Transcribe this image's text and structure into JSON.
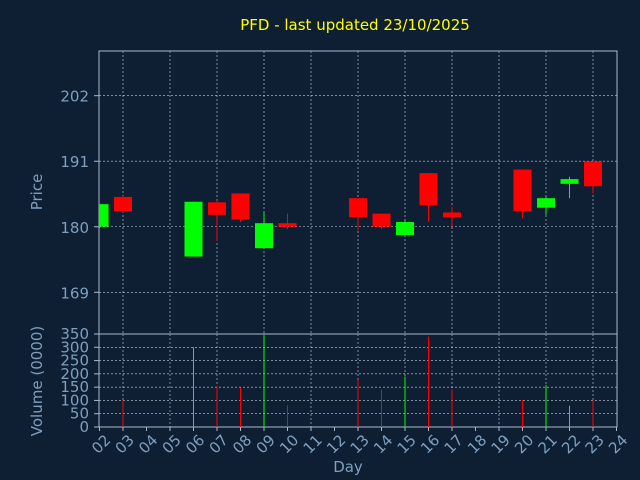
{
  "colors": {
    "background": "#0f1f33",
    "axis": "#a8b8c8",
    "grid": "#c8d0d8",
    "title": "#ffff00",
    "label": "#7f9fbf",
    "up": "#00ff00",
    "down": "#ff0000"
  },
  "chart_data": {
    "type": "candlestick",
    "title": "PFD - last updated 23/10/2025",
    "price_panel": {
      "ylabel": "Price",
      "ylim": [
        162.0,
        209.5
      ],
      "yticks": [
        169,
        180,
        191,
        202
      ],
      "grid": true
    },
    "volume_panel": {
      "ylabel": "Volume (0000)",
      "ylim": [
        0,
        350
      ],
      "yticks": [
        0,
        50,
        100,
        150,
        200,
        250,
        300,
        350
      ],
      "grid": true
    },
    "xlabel": "Day",
    "x_ticks": [
      "02",
      "03",
      "04",
      "05",
      "06",
      "07",
      "08",
      "09",
      "10",
      "11",
      "12",
      "13",
      "14",
      "15",
      "16",
      "17",
      "18",
      "19",
      "20",
      "21",
      "22",
      "23",
      "24"
    ],
    "candles": [
      {
        "day": "02",
        "open": 180.0,
        "high": 183.8,
        "low": 179.8,
        "close": 183.8,
        "volume": 0
      },
      {
        "day": "03",
        "open": 185.0,
        "high": 185.2,
        "low": 182.4,
        "close": 182.6,
        "volume": 100
      },
      {
        "day": "06",
        "open": 175.0,
        "high": 184.2,
        "low": 175.0,
        "close": 184.2,
        "volume": 300
      },
      {
        "day": "07",
        "open": 184.1,
        "high": 184.4,
        "low": 177.6,
        "close": 182.0,
        "volume": 155
      },
      {
        "day": "08",
        "open": 185.6,
        "high": 185.6,
        "low": 180.8,
        "close": 181.2,
        "volume": 148
      },
      {
        "day": "09",
        "open": 176.4,
        "high": 182.4,
        "low": 176.4,
        "close": 180.6,
        "volume": 342
      },
      {
        "day": "10",
        "open": 180.6,
        "high": 182.2,
        "low": 179.6,
        "close": 180.0,
        "volume": 82
      },
      {
        "day": "13",
        "open": 184.8,
        "high": 184.8,
        "low": 179.4,
        "close": 181.6,
        "volume": 178
      },
      {
        "day": "14",
        "open": 182.2,
        "high": 182.2,
        "low": 179.6,
        "close": 180.0,
        "volume": 140
      },
      {
        "day": "15",
        "open": 178.6,
        "high": 181.0,
        "low": 178.6,
        "close": 180.8,
        "volume": 190
      },
      {
        "day": "16",
        "open": 189.0,
        "high": 189.0,
        "low": 180.8,
        "close": 183.6,
        "volume": 340
      },
      {
        "day": "17",
        "open": 182.4,
        "high": 183.4,
        "low": 180.0,
        "close": 181.6,
        "volume": 142
      },
      {
        "day": "20",
        "open": 189.6,
        "high": 189.6,
        "low": 181.4,
        "close": 182.6,
        "volume": 100
      },
      {
        "day": "21",
        "open": 183.2,
        "high": 185.0,
        "low": 182.0,
        "close": 184.8,
        "volume": 158
      },
      {
        "day": "22",
        "open": 187.2,
        "high": 188.4,
        "low": 184.8,
        "close": 188.0,
        "volume": 80
      },
      {
        "day": "23",
        "open": 191.0,
        "high": 191.0,
        "low": 185.6,
        "close": 186.8,
        "volume": 100
      }
    ]
  }
}
